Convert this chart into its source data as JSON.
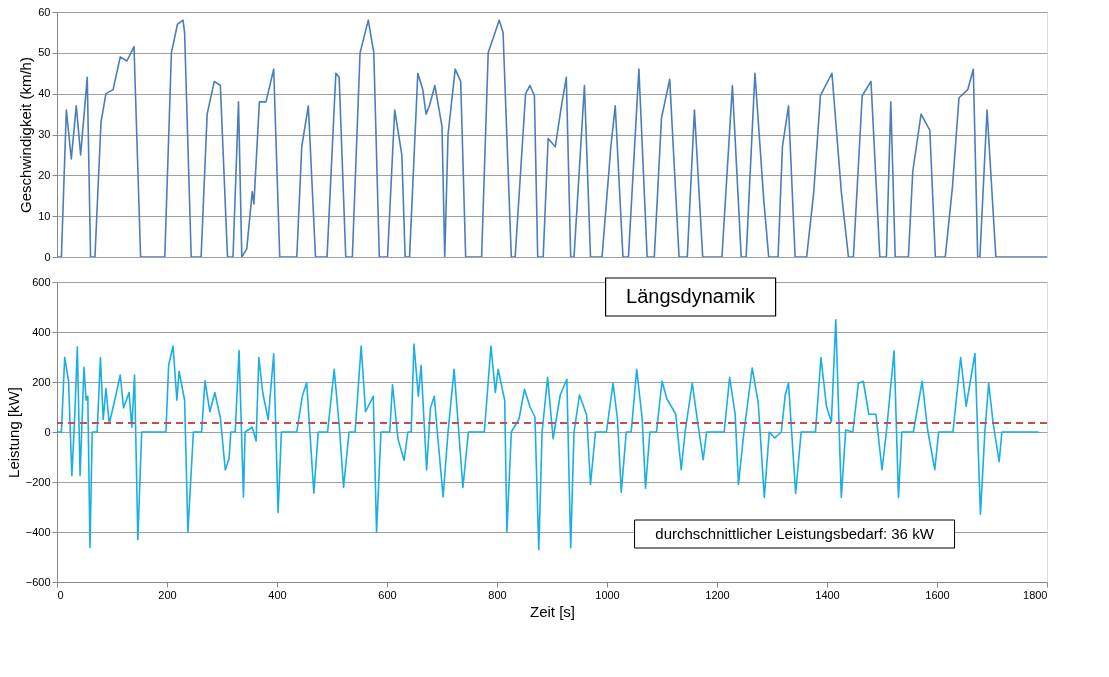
{
  "chart_data": [
    {
      "type": "line",
      "ylabel": "Geschwindigkeit (km/h)",
      "color": "#4a7ebb",
      "xlim": [
        0,
        1800
      ],
      "ylim": [
        0,
        60
      ],
      "yticks": [
        0,
        10,
        20,
        30,
        40,
        50,
        60
      ],
      "grid": "y",
      "tick_labels": "y",
      "x": [
        0,
        8,
        17,
        26,
        35,
        43,
        55,
        61,
        69,
        80,
        89,
        102,
        115,
        127,
        140,
        152,
        196,
        208,
        219,
        229,
        232,
        244,
        262,
        273,
        286,
        297,
        310,
        320,
        330,
        336,
        345,
        355,
        358,
        368,
        380,
        394,
        405,
        436,
        445,
        457,
        470,
        491,
        507,
        513,
        525,
        537,
        551,
        566,
        576,
        586,
        601,
        614,
        627,
        633,
        641,
        656,
        665,
        671,
        677,
        687,
        700,
        705,
        711,
        724,
        734,
        743,
        772,
        784,
        804,
        811,
        826,
        833,
        852,
        860,
        868,
        874,
        884,
        893,
        906,
        916,
        926,
        934,
        940,
        959,
        970,
        991,
        1007,
        1015,
        1029,
        1039,
        1058,
        1073,
        1086,
        1099,
        1114,
        1131,
        1146,
        1159,
        1174,
        1209,
        1228,
        1244,
        1253,
        1269,
        1285,
        1294,
        1311,
        1319,
        1330,
        1342,
        1363,
        1376,
        1388,
        1409,
        1426,
        1439,
        1448,
        1464,
        1480,
        1496,
        1508,
        1516,
        1524,
        1548,
        1556,
        1571,
        1587,
        1597,
        1615,
        1628,
        1640,
        1656,
        1666,
        1674,
        1678,
        1691,
        1707,
        1800
      ],
      "values": [
        0,
        0,
        36,
        24,
        37,
        25,
        44,
        0,
        0,
        33,
        40,
        41,
        49,
        48,
        51.5,
        0,
        0,
        50,
        57,
        58,
        55,
        0,
        0,
        35,
        43,
        42,
        0,
        0,
        38,
        0,
        2,
        16,
        13,
        38,
        38,
        46,
        0,
        0,
        27,
        37,
        0,
        0,
        45,
        44,
        0,
        0,
        50,
        58,
        50,
        0,
        0,
        36,
        25,
        0,
        0,
        45,
        41,
        35,
        37,
        42,
        32,
        0,
        30,
        46,
        43,
        0,
        0,
        50,
        58,
        55,
        0,
        0,
        40,
        42,
        39.5,
        0,
        0,
        29,
        27,
        36,
        44,
        0,
        0,
        42,
        0,
        0,
        27,
        37,
        0,
        0,
        46,
        0,
        0,
        34,
        43.5,
        0,
        0,
        36,
        0,
        0,
        42,
        0,
        0,
        45,
        14,
        0,
        0,
        27,
        37,
        0,
        0,
        16,
        39.5,
        45,
        16,
        0,
        0,
        39.5,
        43,
        0,
        0,
        38,
        0,
        0,
        21,
        35,
        31,
        0,
        0,
        17,
        39,
        41,
        46,
        0,
        0,
        36,
        0,
        0
      ]
    },
    {
      "type": "line",
      "ylabel": "Leistung [kW]",
      "xlabel": "Zeit [s]",
      "color": "#1aaee6",
      "xlim": [
        0,
        1800
      ],
      "xticks": [
        0,
        200,
        400,
        600,
        800,
        1000,
        1200,
        1400,
        1600,
        1800
      ],
      "ylim": [
        -600,
        600
      ],
      "yticks": [
        -600,
        -400,
        -200,
        0,
        200,
        400,
        600
      ],
      "grid": "y",
      "ref_lines": [
        {
          "axis": "y",
          "value": 36,
          "color": "#c0504d",
          "line_style": "dashed"
        }
      ],
      "annotations": [
        "Längsdynamik",
        "durchschnittlicher Leistungsbedarf: 36 kW"
      ],
      "x": [
        0,
        8,
        14,
        21,
        27,
        32,
        37,
        42,
        49,
        53,
        56,
        60,
        64,
        73,
        79,
        84,
        89,
        95,
        105,
        115,
        121,
        131,
        136,
        141,
        147,
        154,
        198,
        203,
        211,
        218,
        222,
        232,
        238,
        248,
        263,
        269,
        278,
        287,
        297,
        306,
        313,
        316,
        324,
        331,
        339,
        342,
        355,
        362,
        367,
        374,
        384,
        394,
        402,
        408,
        436,
        446,
        454,
        467,
        475,
        492,
        504,
        514,
        521,
        531,
        542,
        553,
        561,
        575,
        581,
        589,
        605,
        610,
        620,
        631,
        638,
        644,
        649,
        657,
        662,
        672,
        679,
        686,
        692,
        702,
        711,
        722,
        738,
        748,
        777,
        789,
        797,
        802,
        814,
        818,
        826,
        840,
        850,
        860,
        869,
        876,
        882,
        892,
        902,
        915,
        927,
        934,
        940,
        950,
        963,
        970,
        979,
        999,
        1011,
        1019,
        1026,
        1035,
        1044,
        1054,
        1064,
        1070,
        1078,
        1090,
        1100,
        1109,
        1125,
        1135,
        1142,
        1155,
        1165,
        1175,
        1181,
        1213,
        1223,
        1233,
        1239,
        1249,
        1264,
        1275,
        1286,
        1295,
        1305,
        1317,
        1324,
        1330,
        1343,
        1353,
        1379,
        1389,
        1399,
        1408,
        1416,
        1426,
        1434,
        1447,
        1457,
        1466,
        1476,
        1489,
        1500,
        1508,
        1522,
        1530,
        1536,
        1557,
        1573,
        1583,
        1596,
        1603,
        1629,
        1643,
        1653,
        1669,
        1679,
        1687,
        1694,
        1702,
        1713,
        1718,
        1785
      ],
      "values": [
        0,
        0,
        298,
        205,
        -175,
        50,
        341,
        -175,
        259,
        127,
        143,
        -462,
        0,
        0,
        298,
        50,
        174,
        34,
        127,
        228,
        96,
        158,
        19,
        228,
        -431,
        0,
        0,
        267,
        344,
        127,
        243,
        127,
        -400,
        0,
        0,
        205,
        81,
        158,
        57,
        -152,
        -105,
        0,
        0,
        326,
        -260,
        0,
        19,
        -36,
        298,
        158,
        50,
        313,
        -322,
        0,
        0,
        143,
        197,
        -245,
        0,
        0,
        251,
        3,
        -222,
        0,
        0,
        344,
        81,
        143,
        -400,
        0,
        0,
        189,
        -28,
        -113,
        0,
        0,
        352,
        143,
        267,
        -152,
        96,
        143,
        -12,
        -260,
        0,
        251,
        -222,
        0,
        0,
        344,
        158,
        251,
        127,
        -400,
        0,
        52,
        171,
        100,
        60,
        -471,
        0,
        219,
        -27,
        148,
        211,
        -463,
        0,
        148,
        68,
        -210,
        0,
        0,
        195,
        52,
        -241,
        0,
        0,
        251,
        52,
        -225,
        0,
        0,
        203,
        132,
        71,
        -151,
        0,
        195,
        37,
        -111,
        0,
        0,
        219,
        71,
        -210,
        0,
        256,
        116,
        -262,
        0,
        -24,
        0,
        148,
        195,
        -246,
        0,
        0,
        298,
        103,
        40,
        449,
        -262,
        8,
        0,
        195,
        203,
        71,
        71,
        -151,
        0,
        325,
        -262,
        0,
        0,
        203,
        8,
        -151,
        0,
        0,
        298,
        103,
        314,
        -329,
        0,
        195,
        37,
        -119,
        0,
        0
      ]
    }
  ]
}
